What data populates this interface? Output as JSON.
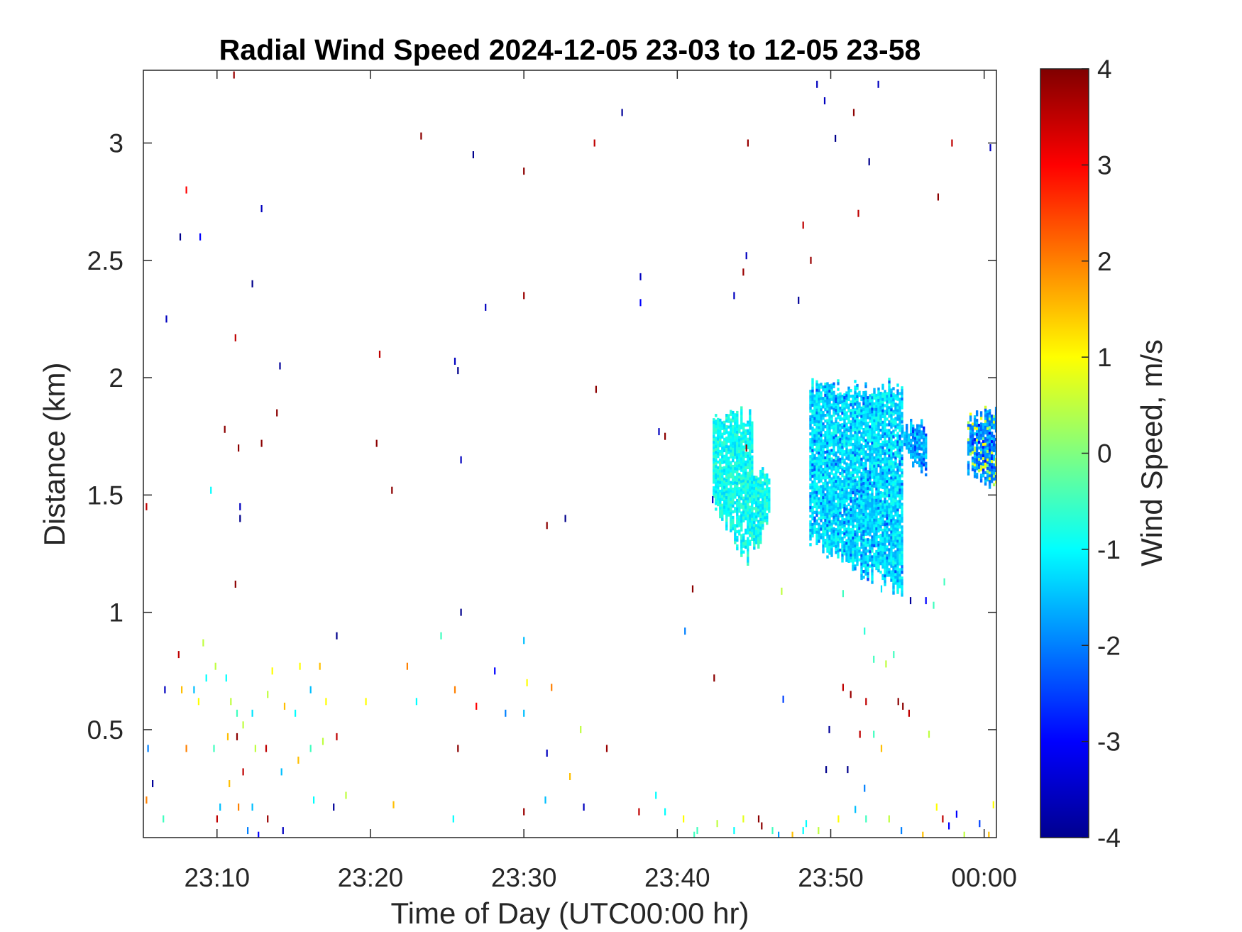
{
  "chart_data": {
    "type": "heatmap",
    "title": "Radial Wind Speed 2024-12-05 23-03 to 12-05 23-58",
    "xlabel": "Time of Day (UTC00:00 hr)",
    "ylabel": "Distance (km)",
    "x_tick_labels": [
      "23:10",
      "23:20",
      "23:30",
      "23:40",
      "23:50",
      "00:00"
    ],
    "x_tick_minutes": [
      10,
      20,
      30,
      40,
      50,
      60
    ],
    "xlim_minutes": [
      5.2,
      60.8
    ],
    "y_ticks": [
      0.5,
      1,
      1.5,
      2,
      2.5,
      3
    ],
    "y_tick_labels": [
      "0.5",
      "1",
      "1.5",
      "2",
      "2.5",
      "3"
    ],
    "ylim": [
      0.04,
      3.31
    ],
    "colorbar": {
      "label": "Wind Speed, m/s",
      "ticks": [
        -4,
        -3,
        -2,
        -1,
        0,
        1,
        2,
        3,
        4
      ],
      "tick_labels": [
        "-4",
        "-3",
        "-2",
        "-1",
        "0",
        "1",
        "2",
        "3",
        "4"
      ],
      "range": [
        -4,
        4
      ],
      "colormap": "jet"
    },
    "clusters": [
      {
        "t_start": 42.3,
        "t_end": 46.0,
        "d_bottom": 1.2,
        "d_top": 1.88,
        "speed": -0.9
      },
      {
        "t_start": 48.6,
        "t_end": 54.6,
        "d_bottom": 1.05,
        "d_top": 2.0,
        "speed": -1.2
      },
      {
        "t_start": 54.6,
        "t_end": 56.2,
        "d_bottom": 1.55,
        "d_top": 1.84,
        "speed": -1.6
      },
      {
        "t_start": 58.9,
        "t_end": 60.8,
        "d_bottom": 1.47,
        "d_top": 1.88,
        "speed": -1.8
      }
    ],
    "scattered_points": [
      [
        11.1,
        3.29,
        3.8
      ],
      [
        23.3,
        3.03,
        3.9
      ],
      [
        26.7,
        2.95,
        -3.9
      ],
      [
        30.0,
        2.88,
        3.9
      ],
      [
        34.6,
        3.0,
        3.5
      ],
      [
        36.4,
        3.13,
        -3.8
      ],
      [
        8.0,
        2.8,
        3.0
      ],
      [
        7.6,
        2.6,
        -3.9
      ],
      [
        8.9,
        2.6,
        -3.0
      ],
      [
        12.9,
        2.72,
        -3.5
      ],
      [
        12.3,
        2.4,
        -3.9
      ],
      [
        6.7,
        2.25,
        -3.5
      ],
      [
        11.2,
        2.17,
        3.5
      ],
      [
        14.1,
        2.05,
        -3.8
      ],
      [
        20.6,
        2.1,
        3.5
      ],
      [
        25.5,
        2.07,
        -3.5
      ],
      [
        25.7,
        2.03,
        -3.9
      ],
      [
        34.7,
        1.95,
        3.9
      ],
      [
        27.5,
        2.3,
        -3.5
      ],
      [
        30.0,
        2.35,
        3.8
      ],
      [
        37.6,
        2.43,
        -3.5
      ],
      [
        37.6,
        2.32,
        -3.0
      ],
      [
        43.7,
        2.35,
        -3.5
      ],
      [
        44.5,
        2.52,
        -3.5
      ],
      [
        44.3,
        2.45,
        3.8
      ],
      [
        47.9,
        2.33,
        -3.8
      ],
      [
        48.2,
        2.65,
        3.5
      ],
      [
        48.7,
        2.5,
        3.8
      ],
      [
        51.8,
        2.7,
        3.5
      ],
      [
        53.1,
        3.25,
        -3.5
      ],
      [
        57.0,
        2.77,
        3.9
      ],
      [
        57.9,
        3.0,
        3.5
      ],
      [
        60.4,
        2.98,
        -3.5
      ],
      [
        49.1,
        3.25,
        -3.5
      ],
      [
        49.6,
        3.18,
        -3.5
      ],
      [
        51.5,
        3.13,
        3.9
      ],
      [
        50.3,
        3.02,
        -3.9
      ],
      [
        52.5,
        2.92,
        -3.9
      ],
      [
        44.6,
        3.0,
        3.8
      ],
      [
        10.5,
        1.78,
        3.9
      ],
      [
        11.4,
        1.7,
        3.9
      ],
      [
        12.9,
        1.72,
        3.9
      ],
      [
        13.9,
        1.85,
        3.9
      ],
      [
        20.4,
        1.72,
        3.9
      ],
      [
        21.4,
        1.52,
        3.9
      ],
      [
        25.9,
        1.65,
        -3.5
      ],
      [
        38.8,
        1.77,
        -3.5
      ],
      [
        39.2,
        1.75,
        3.9
      ],
      [
        9.6,
        1.52,
        -1.0
      ],
      [
        11.5,
        1.45,
        -3.5
      ],
      [
        11.5,
        1.4,
        -3.9
      ],
      [
        31.5,
        1.37,
        3.9
      ],
      [
        32.7,
        1.4,
        -3.9
      ],
      [
        5.4,
        1.45,
        3.5
      ],
      [
        11.2,
        1.12,
        3.9
      ],
      [
        41.0,
        1.1,
        3.9
      ],
      [
        46.8,
        1.09,
        0.5
      ],
      [
        50.8,
        1.08,
        -0.5
      ],
      [
        52.2,
        0.92,
        -0.7
      ],
      [
        52.8,
        0.8,
        -0.5
      ],
      [
        53.6,
        0.78,
        0.5
      ],
      [
        54.1,
        0.82,
        -0.5
      ],
      [
        55.2,
        1.05,
        -3.8
      ],
      [
        56.2,
        1.05,
        -3.0
      ],
      [
        50.8,
        0.68,
        3.5
      ],
      [
        51.3,
        0.65,
        3.8
      ],
      [
        52.3,
        0.62,
        3.5
      ],
      [
        54.4,
        0.62,
        3.9
      ],
      [
        54.7,
        0.6,
        3.9
      ],
      [
        49.9,
        0.5,
        -3.8
      ],
      [
        51.9,
        0.48,
        3.5
      ],
      [
        52.8,
        0.48,
        -0.5
      ],
      [
        49.7,
        0.33,
        -3.9
      ],
      [
        51.1,
        0.33,
        -3.9
      ],
      [
        53.3,
        0.42,
        1.5
      ],
      [
        56.4,
        0.48,
        0.5
      ],
      [
        42.4,
        0.72,
        3.9
      ],
      [
        40.5,
        0.92,
        -2.0
      ],
      [
        17.8,
        0.9,
        -3.9
      ],
      [
        25.9,
        1.0,
        -3.9
      ],
      [
        30.0,
        0.88,
        -1.5
      ],
      [
        28.1,
        0.75,
        -3.0
      ],
      [
        30.2,
        0.7,
        1.0
      ],
      [
        31.8,
        0.68,
        2.0
      ],
      [
        25.5,
        0.67,
        2.0
      ],
      [
        22.4,
        0.77,
        2.0
      ],
      [
        19.7,
        0.62,
        1.0
      ],
      [
        23.0,
        0.62,
        -1.0
      ],
      [
        26.9,
        0.6,
        3.0
      ],
      [
        28.8,
        0.57,
        -2.0
      ],
      [
        30.0,
        0.57,
        -1.5
      ],
      [
        25.7,
        0.42,
        3.9
      ],
      [
        35.4,
        0.42,
        3.8
      ],
      [
        33.7,
        0.5,
        0.5
      ],
      [
        31.5,
        0.4,
        -3.5
      ],
      [
        33.0,
        0.3,
        1.5
      ],
      [
        24.6,
        0.9,
        -0.5
      ],
      [
        6.6,
        0.67,
        -3.5
      ],
      [
        7.5,
        0.82,
        3.5
      ],
      [
        7.7,
        0.67,
        1.5
      ],
      [
        8.5,
        0.67,
        -1.5
      ],
      [
        8.8,
        0.62,
        1.0
      ],
      [
        9.1,
        0.87,
        0.5
      ],
      [
        9.3,
        0.72,
        -1.0
      ],
      [
        9.9,
        0.77,
        0.5
      ],
      [
        10.6,
        0.72,
        -1.0
      ],
      [
        10.9,
        0.62,
        0.5
      ],
      [
        11.3,
        0.57,
        -0.5
      ],
      [
        11.7,
        0.52,
        0.5
      ],
      [
        11.3,
        0.47,
        3.9
      ],
      [
        12.3,
        0.57,
        -1.2
      ],
      [
        13.3,
        0.65,
        0.5
      ],
      [
        13.6,
        0.75,
        1.0
      ],
      [
        14.4,
        0.6,
        1.5
      ],
      [
        15.1,
        0.57,
        -1.0
      ],
      [
        15.4,
        0.77,
        1.0
      ],
      [
        16.1,
        0.67,
        -1.5
      ],
      [
        16.7,
        0.77,
        1.5
      ],
      [
        17.1,
        0.62,
        1.0
      ],
      [
        17.8,
        0.47,
        3.5
      ],
      [
        16.9,
        0.45,
        0.5
      ],
      [
        16.1,
        0.42,
        -0.5
      ],
      [
        15.3,
        0.37,
        1.5
      ],
      [
        14.2,
        0.32,
        -1.5
      ],
      [
        13.2,
        0.42,
        3.5
      ],
      [
        12.5,
        0.42,
        0.5
      ],
      [
        11.7,
        0.32,
        3.5
      ],
      [
        10.8,
        0.27,
        1.5
      ],
      [
        10.2,
        0.17,
        -1.5
      ],
      [
        9.8,
        0.42,
        -0.5
      ],
      [
        10.7,
        0.47,
        1.5
      ],
      [
        8.0,
        0.42,
        2.0
      ],
      [
        5.5,
        0.42,
        -2.0
      ],
      [
        5.8,
        0.27,
        -3.8
      ],
      [
        5.4,
        0.2,
        2.0
      ],
      [
        6.5,
        0.12,
        -0.5
      ],
      [
        10.0,
        0.12,
        3.5
      ],
      [
        11.4,
        0.17,
        2.0
      ],
      [
        12.3,
        0.17,
        -1.5
      ],
      [
        13.3,
        0.12,
        3.8
      ],
      [
        14.3,
        0.07,
        -3.5
      ],
      [
        12.0,
        0.07,
        -2.0
      ],
      [
        12.7,
        0.05,
        -3.0
      ],
      [
        16.3,
        0.2,
        -1.0
      ],
      [
        17.6,
        0.17,
        -3.8
      ],
      [
        18.4,
        0.22,
        0.5
      ],
      [
        21.5,
        0.18,
        1.5
      ],
      [
        25.4,
        0.12,
        -1.0
      ],
      [
        30.0,
        0.15,
        3.8
      ],
      [
        31.4,
        0.2,
        -1.5
      ],
      [
        33.9,
        0.17,
        -3.5
      ],
      [
        37.5,
        0.15,
        3.5
      ],
      [
        38.6,
        0.22,
        -1.0
      ],
      [
        39.2,
        0.15,
        -1.0
      ],
      [
        40.4,
        0.12,
        1.0
      ],
      [
        41.3,
        0.07,
        -0.5
      ],
      [
        42.6,
        0.1,
        0.5
      ],
      [
        43.7,
        0.07,
        -1.0
      ],
      [
        44.3,
        0.12,
        0.8
      ],
      [
        45.3,
        0.12,
        3.9
      ],
      [
        45.5,
        0.09,
        3.9
      ],
      [
        46.2,
        0.07,
        -0.5
      ],
      [
        47.5,
        0.05,
        1.5
      ],
      [
        48.4,
        0.1,
        -1.0
      ],
      [
        49.2,
        0.07,
        0.5
      ],
      [
        50.5,
        0.12,
        1.0
      ],
      [
        51.6,
        0.16,
        -1.5
      ],
      [
        52.3,
        0.12,
        -0.5
      ],
      [
        53.8,
        0.12,
        0.5
      ],
      [
        54.6,
        0.07,
        -2.0
      ],
      [
        56.0,
        0.05,
        1.5
      ],
      [
        56.9,
        0.17,
        1.0
      ],
      [
        57.3,
        0.12,
        3.5
      ],
      [
        57.7,
        0.09,
        -3.0
      ],
      [
        58.2,
        0.14,
        -3.0
      ],
      [
        58.7,
        0.05,
        0.5
      ],
      [
        59.7,
        0.1,
        -2.5
      ],
      [
        60.3,
        0.05,
        1.5
      ],
      [
        60.6,
        0.18,
        1.0
      ],
      [
        41.1,
        0.05,
        -0.5
      ],
      [
        46.6,
        0.05,
        -1.8
      ],
      [
        48.2,
        0.07,
        -1.0
      ],
      [
        52.2,
        0.25,
        -2.0
      ],
      [
        55.1,
        0.57,
        3.5
      ],
      [
        56.7,
        1.03,
        -0.5
      ],
      [
        57.4,
        1.13,
        -0.5
      ],
      [
        53.3,
        1.1,
        -1.2
      ],
      [
        46.9,
        0.63,
        -2.5
      ],
      [
        42.3,
        1.48,
        -3.5
      ],
      [
        44.5,
        1.7,
        3.9
      ]
    ]
  }
}
